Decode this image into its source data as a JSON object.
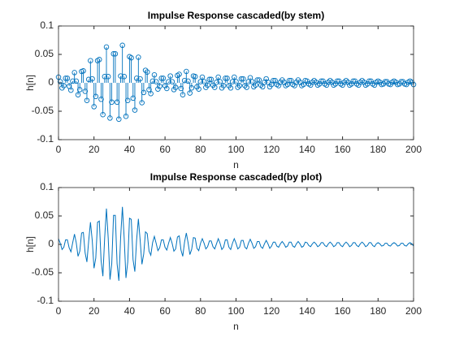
{
  "chart_data": [
    {
      "type": "stem",
      "title": "Impulse Response cascaded(by stem)",
      "x_label": "n",
      "y_label": "h[n]",
      "color": "#0072bd",
      "x": [
        0,
        1,
        2,
        3,
        4,
        5,
        6,
        7,
        8,
        9,
        10,
        11,
        12,
        13,
        14,
        15,
        16,
        17,
        18,
        19,
        20,
        21,
        22,
        23,
        24,
        25,
        26,
        27,
        28,
        29,
        30,
        31,
        32,
        33,
        34,
        35,
        36,
        37,
        38,
        39,
        40,
        41,
        42,
        43,
        44,
        45,
        46,
        47,
        48,
        49,
        50,
        51,
        52,
        53,
        54,
        55,
        56,
        57,
        58,
        59,
        60,
        61,
        62,
        63,
        64,
        65,
        66,
        67,
        68,
        69,
        70,
        71,
        72,
        73,
        74,
        75,
        76,
        77,
        78,
        79,
        80,
        81,
        82,
        83,
        84,
        85,
        86,
        87,
        88,
        89,
        90,
        91,
        92,
        93,
        94,
        95,
        96,
        97,
        98,
        99,
        100,
        101,
        102,
        103,
        104,
        105,
        106,
        107,
        108,
        109,
        110,
        111,
        112,
        113,
        114,
        115,
        116,
        117,
        118,
        119,
        120,
        121,
        122,
        123,
        124,
        125,
        126,
        127,
        128,
        129,
        130,
        131,
        132,
        133,
        134,
        135,
        136,
        137,
        138,
        139,
        140,
        141,
        142,
        143,
        144,
        145,
        146,
        147,
        148,
        149,
        150,
        151,
        152,
        153,
        154,
        155,
        156,
        157,
        158,
        159,
        160,
        161,
        162,
        163,
        164,
        165,
        166,
        167,
        168,
        169,
        170,
        171,
        172,
        173,
        174,
        175,
        176,
        177,
        178,
        179,
        180,
        181,
        182,
        183,
        184,
        185,
        186,
        187,
        188,
        189,
        190,
        191,
        192,
        193,
        194,
        195,
        196,
        197,
        198,
        199,
        200
      ],
      "values": [
        0.01,
        0.002,
        -0.009,
        -0.005,
        0.008,
        0.008,
        -0.006,
        -0.013,
        0.003,
        0.018,
        0.003,
        -0.021,
        -0.012,
        0.02,
        0.021,
        -0.015,
        -0.031,
        0.006,
        0.039,
        0.007,
        -0.042,
        -0.024,
        0.039,
        0.041,
        -0.029,
        -0.056,
        0.011,
        0.063,
        0.011,
        -0.062,
        -0.034,
        0.051,
        0.051,
        -0.034,
        -0.064,
        0.012,
        0.066,
        0.011,
        -0.059,
        -0.031,
        0.046,
        0.044,
        -0.027,
        -0.048,
        0.008,
        0.045,
        0.007,
        -0.035,
        -0.017,
        0.022,
        0.019,
        -0.012,
        -0.019,
        0.003,
        0.014,
        0.002,
        -0.011,
        -0.006,
        0.008,
        0.008,
        -0.005,
        -0.01,
        0.002,
        0.012,
        0.002,
        -0.012,
        -0.008,
        0.013,
        0.015,
        -0.01,
        -0.021,
        0.004,
        0.02,
        0.003,
        -0.018,
        -0.009,
        0.012,
        0.011,
        -0.007,
        -0.011,
        0.002,
        0.01,
        0.002,
        -0.008,
        -0.004,
        0.006,
        0.006,
        -0.004,
        -0.008,
        0.001,
        0.01,
        0.002,
        -0.009,
        -0.005,
        0.008,
        0.008,
        -0.005,
        -0.009,
        0.002,
        0.01,
        0.002,
        -0.008,
        -0.005,
        0.007,
        0.007,
        -0.005,
        -0.008,
        0.002,
        0.009,
        0.002,
        -0.007,
        -0.004,
        0.005,
        0.005,
        -0.004,
        -0.007,
        0.001,
        0.007,
        0.001,
        -0.007,
        -0.003,
        0.004,
        0.004,
        -0.003,
        -0.005,
        0.001,
        0.005,
        0.001,
        -0.005,
        -0.003,
        0.004,
        0.004,
        -0.003,
        -0.005,
        0.001,
        0.005,
        0.001,
        -0.005,
        -0.003,
        0.004,
        0.003,
        -0.002,
        -0.004,
        0.001,
        0.004,
        0.001,
        -0.004,
        -0.002,
        0.003,
        0.003,
        -0.002,
        -0.004,
        0.001,
        0.004,
        0.001,
        -0.004,
        -0.002,
        0.003,
        0.003,
        -0.002,
        -0.004,
        0.001,
        0.004,
        0.001,
        -0.004,
        -0.002,
        0.003,
        0.003,
        -0.002,
        -0.004,
        0.001,
        0.004,
        0.001,
        -0.004,
        -0.002,
        0.003,
        0.003,
        -0.002,
        -0.004,
        0.001,
        0.003,
        0.001,
        -0.003,
        -0.002,
        0.002,
        0.002,
        -0.002,
        -0.003,
        0.001,
        0.003,
        0.001,
        -0.003,
        -0.002,
        0.002,
        0.002,
        -0.002,
        -0.003,
        0.001,
        0.003,
        0.001,
        -0.003
      ],
      "xlim": [
        0,
        200
      ],
      "ylim": [
        -0.1,
        0.1
      ],
      "xticks": [
        0,
        20,
        40,
        60,
        80,
        100,
        120,
        140,
        160,
        180,
        200
      ],
      "yticks": [
        -0.1,
        -0.05,
        0,
        0.05,
        0.1
      ]
    },
    {
      "type": "line",
      "title": "Impulse Response cascaded(by plot)",
      "x_label": "n",
      "y_label": "h[n]",
      "color": "#0072bd",
      "x": [
        0,
        1,
        2,
        3,
        4,
        5,
        6,
        7,
        8,
        9,
        10,
        11,
        12,
        13,
        14,
        15,
        16,
        17,
        18,
        19,
        20,
        21,
        22,
        23,
        24,
        25,
        26,
        27,
        28,
        29,
        30,
        31,
        32,
        33,
        34,
        35,
        36,
        37,
        38,
        39,
        40,
        41,
        42,
        43,
        44,
        45,
        46,
        47,
        48,
        49,
        50,
        51,
        52,
        53,
        54,
        55,
        56,
        57,
        58,
        59,
        60,
        61,
        62,
        63,
        64,
        65,
        66,
        67,
        68,
        69,
        70,
        71,
        72,
        73,
        74,
        75,
        76,
        77,
        78,
        79,
        80,
        81,
        82,
        83,
        84,
        85,
        86,
        87,
        88,
        89,
        90,
        91,
        92,
        93,
        94,
        95,
        96,
        97,
        98,
        99,
        100,
        101,
        102,
        103,
        104,
        105,
        106,
        107,
        108,
        109,
        110,
        111,
        112,
        113,
        114,
        115,
        116,
        117,
        118,
        119,
        120,
        121,
        122,
        123,
        124,
        125,
        126,
        127,
        128,
        129,
        130,
        131,
        132,
        133,
        134,
        135,
        136,
        137,
        138,
        139,
        140,
        141,
        142,
        143,
        144,
        145,
        146,
        147,
        148,
        149,
        150,
        151,
        152,
        153,
        154,
        155,
        156,
        157,
        158,
        159,
        160,
        161,
        162,
        163,
        164,
        165,
        166,
        167,
        168,
        169,
        170,
        171,
        172,
        173,
        174,
        175,
        176,
        177,
        178,
        179,
        180,
        181,
        182,
        183,
        184,
        185,
        186,
        187,
        188,
        189,
        190,
        191,
        192,
        193,
        194,
        195,
        196,
        197,
        198,
        199,
        200
      ],
      "values": [
        0.01,
        0.002,
        -0.009,
        -0.005,
        0.008,
        0.008,
        -0.006,
        -0.013,
        0.003,
        0.018,
        0.003,
        -0.021,
        -0.012,
        0.02,
        0.021,
        -0.015,
        -0.031,
        0.006,
        0.039,
        0.007,
        -0.042,
        -0.024,
        0.039,
        0.041,
        -0.029,
        -0.056,
        0.011,
        0.063,
        0.011,
        -0.062,
        -0.034,
        0.051,
        0.051,
        -0.034,
        -0.064,
        0.012,
        0.066,
        0.011,
        -0.059,
        -0.031,
        0.046,
        0.044,
        -0.027,
        -0.048,
        0.008,
        0.045,
        0.007,
        -0.035,
        -0.017,
        0.022,
        0.019,
        -0.012,
        -0.019,
        0.003,
        0.014,
        0.002,
        -0.011,
        -0.006,
        0.008,
        0.008,
        -0.005,
        -0.01,
        0.002,
        0.012,
        0.002,
        -0.012,
        -0.008,
        0.013,
        0.015,
        -0.01,
        -0.021,
        0.004,
        0.02,
        0.003,
        -0.018,
        -0.009,
        0.012,
        0.011,
        -0.007,
        -0.011,
        0.002,
        0.01,
        0.002,
        -0.008,
        -0.004,
        0.006,
        0.006,
        -0.004,
        -0.008,
        0.001,
        0.01,
        0.002,
        -0.009,
        -0.005,
        0.008,
        0.008,
        -0.005,
        -0.009,
        0.002,
        0.01,
        0.002,
        -0.008,
        -0.005,
        0.007,
        0.007,
        -0.005,
        -0.008,
        0.002,
        0.009,
        0.002,
        -0.007,
        -0.004,
        0.005,
        0.005,
        -0.004,
        -0.007,
        0.001,
        0.007,
        0.001,
        -0.007,
        -0.003,
        0.004,
        0.004,
        -0.003,
        -0.005,
        0.001,
        0.005,
        0.001,
        -0.005,
        -0.003,
        0.004,
        0.004,
        -0.003,
        -0.005,
        0.001,
        0.005,
        0.001,
        -0.005,
        -0.003,
        0.004,
        0.003,
        -0.002,
        -0.004,
        0.001,
        0.004,
        0.001,
        -0.004,
        -0.002,
        0.003,
        0.003,
        -0.002,
        -0.004,
        0.001,
        0.004,
        0.001,
        -0.004,
        -0.002,
        0.003,
        0.003,
        -0.002,
        -0.004,
        0.001,
        0.004,
        0.001,
        -0.004,
        -0.002,
        0.003,
        0.003,
        -0.002,
        -0.004,
        0.001,
        0.004,
        0.001,
        -0.004,
        -0.002,
        0.003,
        0.003,
        -0.002,
        -0.004,
        0.001,
        0.003,
        0.001,
        -0.003,
        -0.002,
        0.002,
        0.002,
        -0.002,
        -0.003,
        0.001,
        0.003,
        0.001,
        -0.003,
        -0.002,
        0.002,
        0.002,
        -0.002,
        -0.003,
        0.001,
        0.003,
        0.001,
        -0.003
      ],
      "xlim": [
        0,
        200
      ],
      "ylim": [
        -0.1,
        0.1
      ],
      "xticks": [
        0,
        20,
        40,
        60,
        80,
        100,
        120,
        140,
        160,
        180,
        200
      ],
      "yticks": [
        -0.1,
        -0.05,
        0,
        0.05,
        0.1
      ]
    }
  ]
}
